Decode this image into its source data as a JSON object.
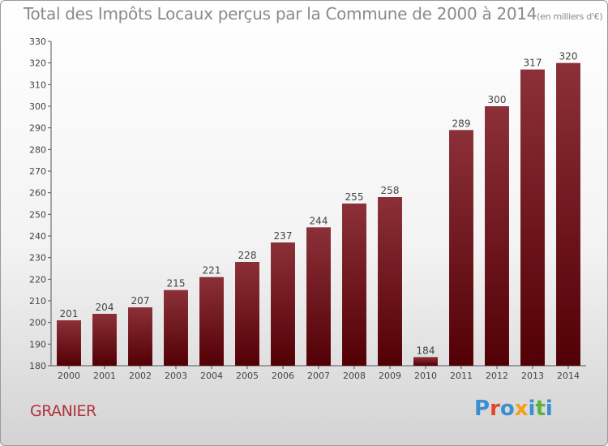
{
  "title": "Total des Impôts Locaux perçus par la Commune de 2000 à 2014",
  "title_unit": "(en milliers d'€)",
  "commune": "GRANIER",
  "logo": {
    "letters": [
      "P",
      "r",
      "o",
      "x",
      "i",
      "t",
      "i"
    ],
    "colors": [
      "#3a8fd0",
      "#e2472b",
      "#3a8fd0",
      "#f3a019",
      "#3a8fd0",
      "#5ab23c",
      "#3a8fd0"
    ]
  },
  "colors": {
    "bar_top": "#8c3038",
    "bar_bottom": "#520005"
  },
  "chart_data": {
    "type": "bar",
    "title": "Total des Impôts Locaux perçus par la Commune de 2000 à 2014",
    "categories": [
      "2000",
      "2001",
      "2002",
      "2003",
      "2004",
      "2005",
      "2006",
      "2007",
      "2008",
      "2009",
      "2010",
      "2011",
      "2012",
      "2013",
      "2014"
    ],
    "values": [
      201,
      204,
      207,
      215,
      221,
      228,
      237,
      244,
      255,
      258,
      184,
      289,
      300,
      317,
      320
    ],
    "ylim": [
      180,
      330
    ],
    "yticks": [
      180,
      190,
      200,
      210,
      220,
      230,
      240,
      250,
      260,
      270,
      280,
      290,
      300,
      310,
      320,
      330
    ],
    "grid": false,
    "legend": "none"
  }
}
